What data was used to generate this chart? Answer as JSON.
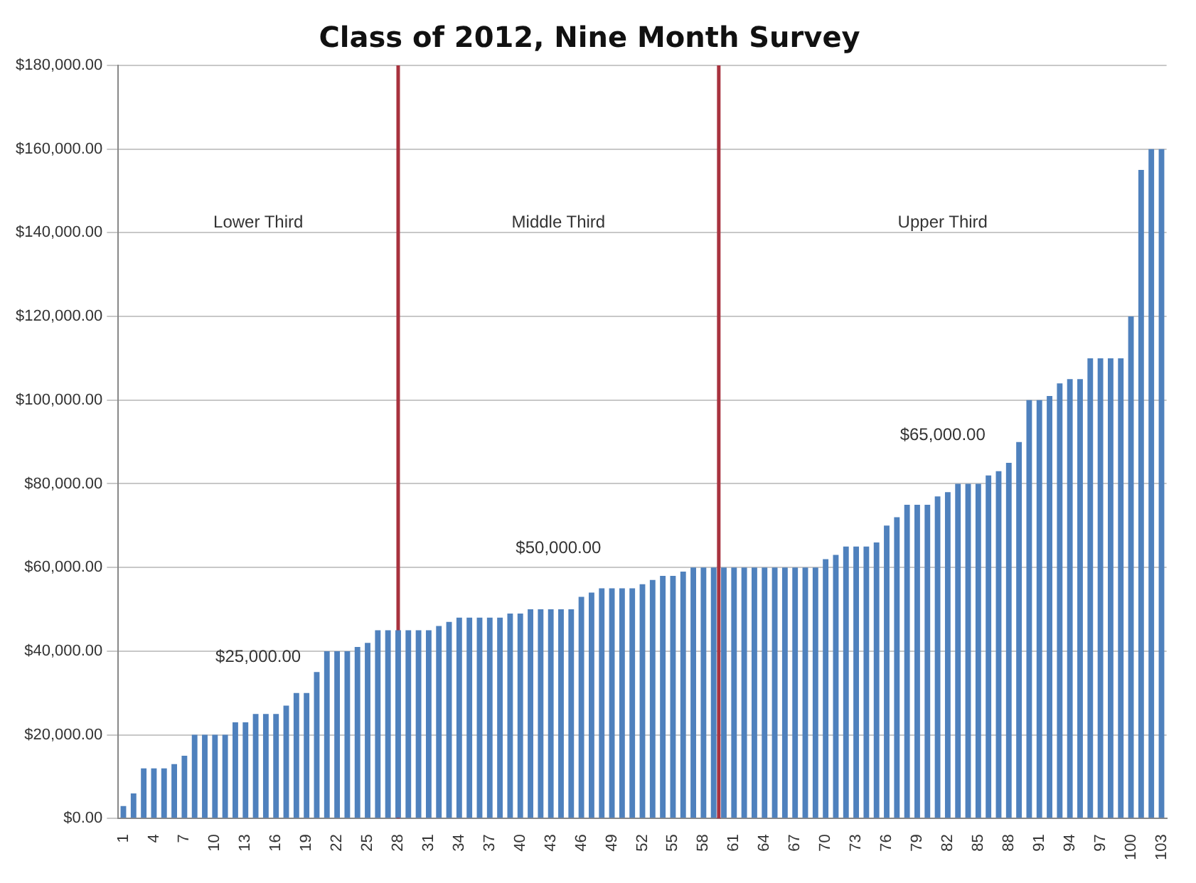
{
  "chart_data": {
    "type": "bar",
    "title": "Class of 2012, Nine Month Survey",
    "x": [
      1,
      2,
      3,
      4,
      5,
      6,
      7,
      8,
      9,
      10,
      11,
      12,
      13,
      14,
      15,
      16,
      17,
      18,
      19,
      20,
      21,
      22,
      23,
      24,
      25,
      26,
      27,
      28,
      29,
      30,
      31,
      32,
      33,
      34,
      35,
      36,
      37,
      38,
      39,
      40,
      41,
      42,
      43,
      44,
      45,
      46,
      47,
      48,
      49,
      50,
      51,
      52,
      53,
      54,
      55,
      56,
      57,
      58,
      59,
      60,
      61,
      62,
      63,
      64,
      65,
      66,
      67,
      68,
      69,
      70,
      71,
      72,
      73,
      74,
      75,
      76,
      77,
      78,
      79,
      80,
      81,
      82,
      83,
      84,
      85,
      86,
      87,
      88,
      89,
      90,
      91,
      92,
      93,
      94,
      95,
      96,
      97,
      98,
      99,
      100,
      101,
      102,
      103
    ],
    "values": [
      3000,
      6000,
      12000,
      12000,
      12000,
      13000,
      15000,
      20000,
      20000,
      20000,
      20000,
      23000,
      23000,
      25000,
      25000,
      25000,
      27000,
      30000,
      30000,
      35000,
      40000,
      40000,
      40000,
      41000,
      42000,
      45000,
      45000,
      45000,
      45000,
      45000,
      45000,
      46000,
      47000,
      48000,
      48000,
      48000,
      48000,
      48000,
      49000,
      49000,
      50000,
      50000,
      50000,
      50000,
      50000,
      53000,
      54000,
      55000,
      55000,
      55000,
      55000,
      56000,
      57000,
      58000,
      58000,
      59000,
      60000,
      60000,
      60000,
      60000,
      60000,
      60000,
      60000,
      60000,
      60000,
      60000,
      60000,
      60000,
      60000,
      62000,
      63000,
      65000,
      65000,
      65000,
      66000,
      70000,
      72000,
      75000,
      75000,
      75000,
      77000,
      78000,
      80000,
      80000,
      80000,
      82000,
      83000,
      85000,
      90000,
      100000,
      100000,
      101000,
      104000,
      105000,
      105000,
      110000,
      110000,
      110000,
      110000,
      120000,
      155000,
      160000,
      160000
    ],
    "color": "#4f81bd",
    "xlim": [
      0.5,
      103.5
    ],
    "xticks": [
      1,
      4,
      7,
      10,
      13,
      16,
      19,
      22,
      25,
      28,
      31,
      34,
      37,
      40,
      43,
      46,
      49,
      52,
      55,
      58,
      61,
      64,
      67,
      70,
      73,
      76,
      79,
      82,
      85,
      88,
      91,
      94,
      97,
      100,
      103
    ],
    "ylim": [
      0,
      180000
    ],
    "yticks": [
      {
        "value": 0,
        "label": "$0.00"
      },
      {
        "value": 20000,
        "label": "$20,000.00"
      },
      {
        "value": 40000,
        "label": "$40,000.00"
      },
      {
        "value": 60000,
        "label": "$60,000.00"
      },
      {
        "value": 80000,
        "label": "$80,000.00"
      },
      {
        "value": 100000,
        "label": "$100,000.00"
      },
      {
        "value": 120000,
        "label": "$120,000.00"
      },
      {
        "value": 140000,
        "label": "$140,000.00"
      },
      {
        "value": 160000,
        "label": "$160,000.00"
      },
      {
        "value": 180000,
        "label": "$180,000.00"
      }
    ],
    "grid": "y",
    "ref_lines": [
      {
        "axis": "x",
        "value": 28,
        "color": "#a8323e"
      },
      {
        "axis": "x",
        "value": 59.5,
        "color": "#a8323e"
      }
    ],
    "annotations": [
      "Lower Third",
      "Middle Third",
      "Upper Third",
      "$25,000.00",
      "$50,000.00",
      "$65,000.00"
    ]
  }
}
